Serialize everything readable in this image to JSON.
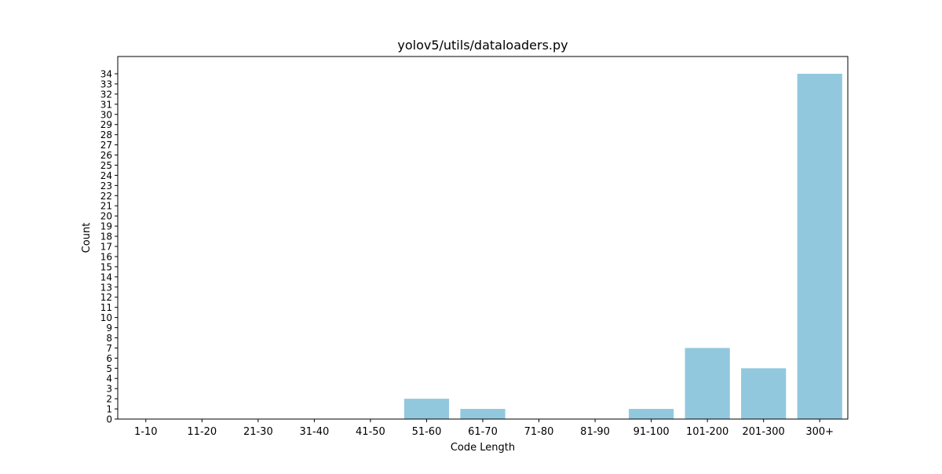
{
  "chart_data": {
    "type": "bar",
    "title": "yolov5/utils/dataloaders.py",
    "xlabel": "Code Length",
    "ylabel": "Count",
    "categories": [
      "1-10",
      "11-20",
      "21-30",
      "31-40",
      "41-50",
      "51-60",
      "61-70",
      "71-80",
      "81-90",
      "91-100",
      "101-200",
      "201-300",
      "300+"
    ],
    "values": [
      0,
      0,
      0,
      0,
      0,
      2,
      1,
      0,
      0,
      1,
      7,
      5,
      34
    ],
    "ylim": [
      0,
      35.7
    ],
    "yticks": [
      0,
      1,
      2,
      3,
      4,
      5,
      6,
      7,
      8,
      9,
      10,
      11,
      12,
      13,
      14,
      15,
      16,
      17,
      18,
      19,
      20,
      21,
      22,
      23,
      24,
      25,
      26,
      27,
      28,
      29,
      30,
      31,
      32,
      33,
      34
    ],
    "bar_color": "#92c8de",
    "grid": false,
    "legend": "none"
  }
}
